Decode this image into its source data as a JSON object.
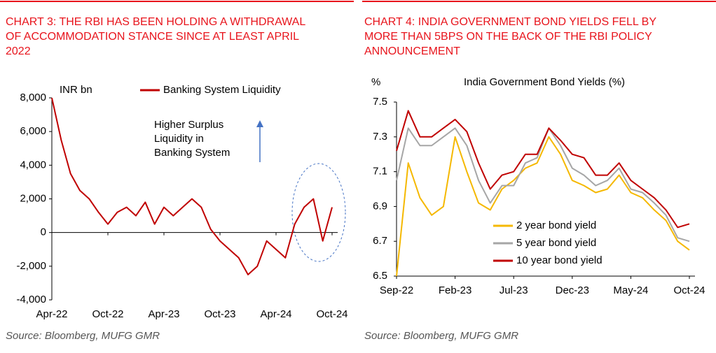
{
  "chart_data": [
    {
      "type": "line",
      "title": [
        "CHART 3: THE RBI HAS BEEN HOLDING A WITHDRAWAL",
        "OF ACCOMMODATION STANCE SINCE AT LEAST APRIL",
        "2022"
      ],
      "unit_label": "INR bn",
      "annotation": [
        "Higher Surplus",
        "Liquidity in",
        "Banking System"
      ],
      "source": "Source: Bloomberg, MUFG GMR",
      "legend": "top",
      "x": [
        "Apr-22",
        "May-22",
        "Jun-22",
        "Jul-22",
        "Aug-22",
        "Sep-22",
        "Oct-22",
        "Nov-22",
        "Dec-22",
        "Jan-23",
        "Feb-23",
        "Mar-23",
        "Apr-23",
        "May-23",
        "Jun-23",
        "Jul-23",
        "Aug-23",
        "Sep-23",
        "Oct-23",
        "Nov-23",
        "Dec-23",
        "Jan-24",
        "Feb-24",
        "Mar-24",
        "Apr-24",
        "May-24",
        "Jun-24",
        "Jul-24",
        "Aug-24",
        "Sep-24",
        "Oct-24"
      ],
      "xticks": [
        "Apr-22",
        "Oct-22",
        "Apr-23",
        "Oct-23",
        "Apr-24",
        "Oct-24"
      ],
      "series": [
        {
          "name": "Banking System Liquidity",
          "color": "#c00000",
          "values": [
            8000,
            5500,
            3500,
            2500,
            2000,
            1200,
            500,
            1200,
            1500,
            1000,
            1800,
            500,
            1500,
            1000,
            1500,
            2000,
            1500,
            200,
            -500,
            -1000,
            -1500,
            -2500,
            -2000,
            -500,
            -1000,
            -1500,
            500,
            1500,
            2000,
            -500,
            1500
          ]
        }
      ],
      "ylim": [
        -4000,
        8000
      ],
      "yticks": [
        {
          "value": 8000,
          "label": "8,000"
        },
        {
          "value": 6000,
          "label": "6,000"
        },
        {
          "value": 4000,
          "label": "4,000"
        },
        {
          "value": 2000,
          "label": "2,000"
        },
        0,
        {
          "value": -2000,
          "label": "-2,000"
        },
        {
          "value": -4000,
          "label": "-4,000"
        }
      ]
    },
    {
      "type": "line",
      "title": [
        "CHART 4: INDIA GOVERNMENT BOND YIELDS FELL BY",
        "MORE THAN 5BPS ON THE BACK OF THE RBI POLICY",
        "ANNOUNCEMENT"
      ],
      "unit_label": "%",
      "subtitle": "India Government Bond Yields (%)",
      "source": "Source: Bloomberg, MUFG GMR",
      "legend": "lower right",
      "x": [
        "Sep-22",
        "Oct-22",
        "Nov-22",
        "Dec-22",
        "Jan-23",
        "Feb-23",
        "Mar-23",
        "Apr-23",
        "May-23",
        "Jun-23",
        "Jul-23",
        "Aug-23",
        "Sep-23",
        "Oct-23",
        "Nov-23",
        "Dec-23",
        "Jan-24",
        "Feb-24",
        "Mar-24",
        "Apr-24",
        "May-24",
        "Jun-24",
        "Jul-24",
        "Aug-24",
        "Sep-24",
        "Oct-24"
      ],
      "xticks": [
        "Sep-22",
        "Feb-23",
        "Jul-23",
        "Dec-23",
        "May-24",
        "Oct-24"
      ],
      "series": [
        {
          "name": "2 year  bond yield",
          "color": "#f5b800",
          "values": [
            6.5,
            7.15,
            6.95,
            6.85,
            6.9,
            7.3,
            7.1,
            6.92,
            6.88,
            7.0,
            7.05,
            7.12,
            7.15,
            7.3,
            7.2,
            7.05,
            7.02,
            6.98,
            7.0,
            7.08,
            6.98,
            6.95,
            6.88,
            6.82,
            6.7,
            6.65
          ]
        },
        {
          "name": "5 year  bond yield",
          "color": "#a6a6a6",
          "values": [
            7.05,
            7.35,
            7.25,
            7.25,
            7.3,
            7.35,
            7.25,
            7.05,
            6.92,
            7.02,
            7.02,
            7.15,
            7.18,
            7.35,
            7.25,
            7.12,
            7.08,
            7.02,
            7.05,
            7.12,
            7.0,
            6.98,
            6.92,
            6.85,
            6.72,
            6.7
          ]
        },
        {
          "name": "10 year  bond yield",
          "color": "#c00000",
          "values": [
            7.22,
            7.45,
            7.3,
            7.3,
            7.35,
            7.4,
            7.33,
            7.15,
            7.0,
            7.08,
            7.1,
            7.2,
            7.2,
            7.35,
            7.28,
            7.2,
            7.18,
            7.08,
            7.08,
            7.15,
            7.05,
            7.0,
            6.95,
            6.88,
            6.78,
            6.8
          ]
        }
      ],
      "ylim": [
        6.5,
        7.5
      ],
      "yticks": [
        {
          "value": 7.5,
          "label": "7.5"
        },
        {
          "value": 7.3,
          "label": "7.3"
        },
        {
          "value": 7.1,
          "label": "7.1"
        },
        {
          "value": 6.9,
          "label": "6.9"
        },
        {
          "value": 6.7,
          "label": "6.7"
        },
        {
          "value": 6.5,
          "label": "6.5"
        }
      ]
    }
  ]
}
